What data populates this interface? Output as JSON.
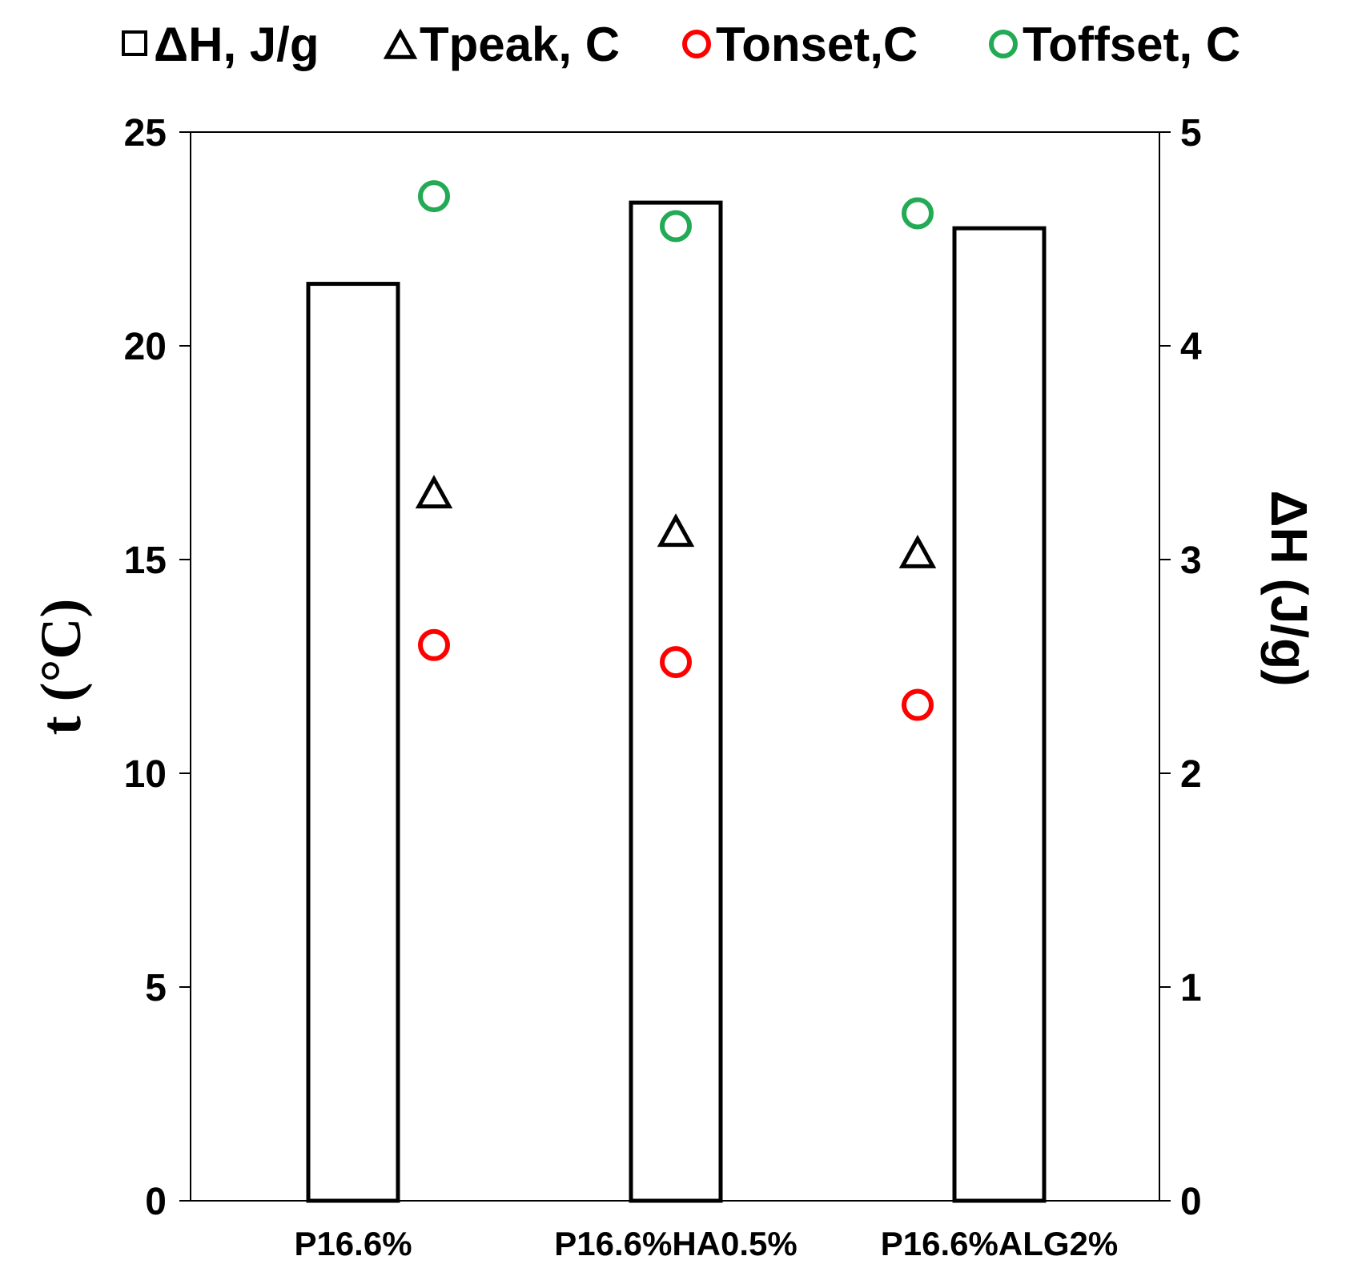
{
  "chart_data": {
    "type": "bar",
    "title": "",
    "xlabel": "",
    "categories": [
      "P16.6%",
      "P16.6%HA0.5%",
      "P16.6%ALG2%"
    ],
    "left_axis": {
      "label": "t (°C)",
      "range": [
        0,
        25
      ],
      "ticks": [
        "0",
        "5",
        "10",
        "15",
        "20",
        "25"
      ]
    },
    "right_axis": {
      "label": "ΔH (J/g)",
      "range": [
        0,
        5
      ],
      "ticks": [
        "0",
        "1",
        "2",
        "3",
        "4",
        "5"
      ]
    },
    "legend_position": "top",
    "series": [
      {
        "name": "ΔH,  J/g",
        "kind": "bar",
        "axis": "right",
        "marker": "square",
        "color": "#000000",
        "values": [
          4.29,
          4.67,
          4.55
        ]
      },
      {
        "name": "Tpeak, C",
        "kind": "scatter",
        "axis": "left",
        "marker": "triangle",
        "color": "#000000",
        "values": [
          16.5,
          15.6,
          15.1
        ]
      },
      {
        "name": "Tonset,C",
        "kind": "scatter",
        "axis": "left",
        "marker": "circle",
        "color": "#ff0000",
        "values": [
          13.0,
          12.6,
          11.6
        ]
      },
      {
        "name": "Toffset, C",
        "kind": "scatter",
        "axis": "left",
        "marker": "circle",
        "color": "#22aa55",
        "values": [
          23.5,
          22.8,
          23.1
        ]
      }
    ]
  }
}
